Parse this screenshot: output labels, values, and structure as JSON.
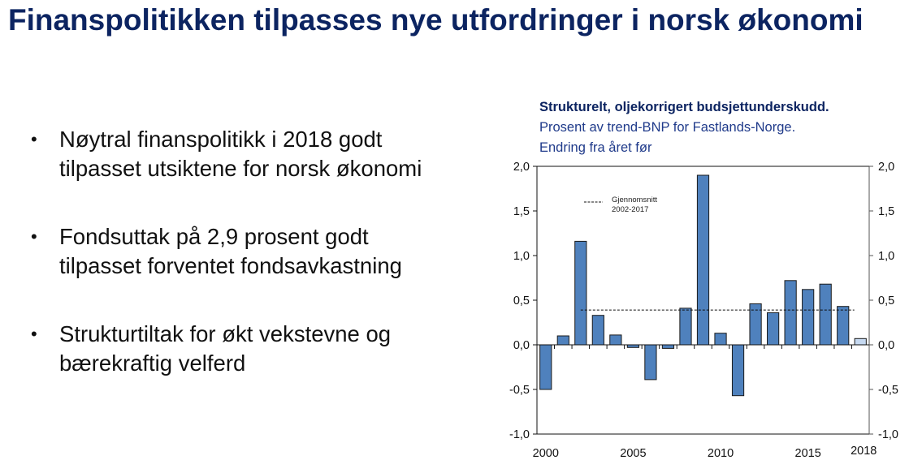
{
  "slide": {
    "title": "Finanspolitikken tilpasses nye utfordringer i norsk økonomi",
    "bullets": [
      "Nøytral finanspolitikk i 2018 godt tilpasset utsiktene for norsk økonomi",
      "Fondsuttak på 2,9 prosent godt tilpasset forventet fondsavkastning",
      "Strukturtiltak for økt vekstevne og bærekraftig velferd"
    ]
  },
  "chart_header": {
    "title": "Strukturelt, oljekorrigert budsjettunderskudd.",
    "subtitle_1": "Prosent av trend-BNP for Fastlands-Norge.",
    "subtitle_2": "Endring fra året før"
  },
  "colors": {
    "bar": "#4f81bd",
    "bar_projection": "#c6d9f1",
    "title": "#0c2461"
  },
  "chart_data": {
    "type": "bar",
    "title": "Strukturelt, oljekorrigert budsjettunderskudd.",
    "subtitle": "Prosent av trend-BNP for Fastlands-Norge. Endring fra året før",
    "xlabel": "",
    "ylabel": "",
    "categories": [
      "2000",
      "2001",
      "2002",
      "2003",
      "2004",
      "2005",
      "2006",
      "2007",
      "2008",
      "2009",
      "2010",
      "2011",
      "2012",
      "2013",
      "2014",
      "2015",
      "2016",
      "2017",
      "2018"
    ],
    "values": [
      -0.5,
      0.1,
      1.16,
      0.33,
      0.11,
      -0.03,
      -0.39,
      -0.04,
      0.41,
      1.9,
      0.13,
      -0.57,
      0.46,
      0.36,
      0.72,
      0.62,
      0.68,
      0.43,
      0.07
    ],
    "projection_categories": [
      "2018"
    ],
    "reference_line": {
      "label": "Gjennomsnitt 2002-2017",
      "value": 0.39,
      "from": "2002",
      "to": "2017",
      "style": "dashed"
    },
    "legend": [
      "Gjennomsnitt",
      "2002-2017"
    ],
    "x_tick_labels": [
      "2000",
      "2005",
      "2010",
      "2015",
      "2018"
    ],
    "y_tick_labels": [
      "2,0",
      "1,5",
      "1,0",
      "0,5",
      "0,0",
      "-0,5",
      "-1,0"
    ],
    "ylim": [
      -1.0,
      2.0
    ],
    "y_ticks": [
      2.0,
      1.5,
      1.0,
      0.5,
      0.0,
      -0.5,
      -1.0
    ],
    "dual_y_axis": true,
    "grid": false
  }
}
